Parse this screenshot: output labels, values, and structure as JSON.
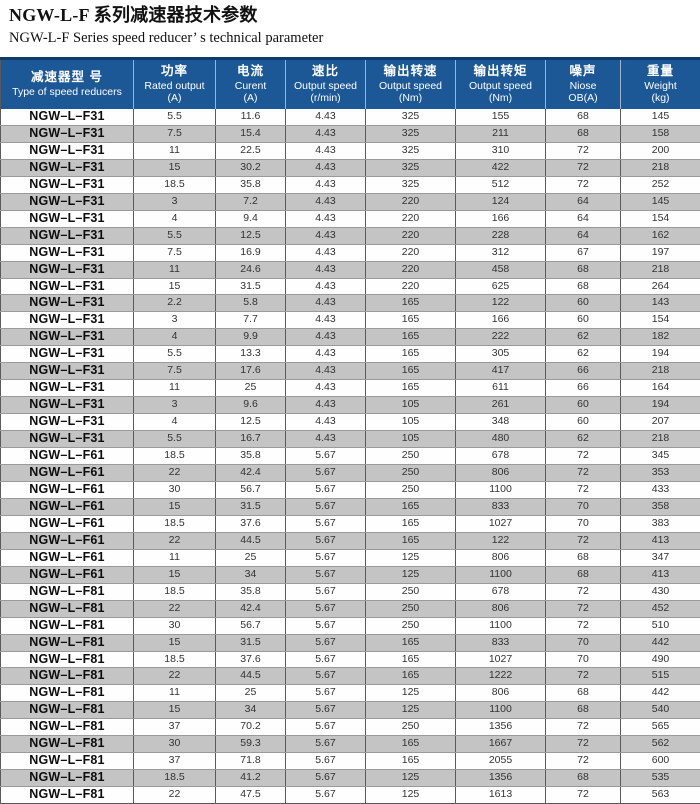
{
  "page": {
    "title_cn": "NGW-L-F 系列减速器技术参数",
    "title_en": "NGW-L-F Series speed reducer’ s technical parameter"
  },
  "colors": {
    "header_background": "#1C5796",
    "header_top_border": "#0F3A6B",
    "row_stripe_gray": "#C4C4C4"
  },
  "table": {
    "columns": [
      {
        "cn": "减速器型 号",
        "en": "Type of speed reducers",
        "unit": ""
      },
      {
        "cn": "功率",
        "en": "Rated output",
        "unit": "(A)"
      },
      {
        "cn": "电流",
        "en": "Curent",
        "unit": "(A)"
      },
      {
        "cn": "速比",
        "en": "Output speed",
        "unit": "(r/min)"
      },
      {
        "cn": "输出转速",
        "en": "Output speed",
        "unit": "(Nm)"
      },
      {
        "cn": "输出转矩",
        "en": "Output speed",
        "unit": "(Nm)"
      },
      {
        "cn": "噪声",
        "en": "Niose",
        "unit": "OB(A)"
      },
      {
        "cn": "重量",
        "en": "Weight",
        "unit": "(kg)"
      }
    ],
    "rows": [
      [
        "NGW–L–F31",
        "5.5",
        "11.6",
        "4.43",
        "325",
        "155",
        "68",
        "145"
      ],
      [
        "NGW–L–F31",
        "7.5",
        "15.4",
        "4.43",
        "325",
        "211",
        "68",
        "158"
      ],
      [
        "NGW–L–F31",
        "11",
        "22.5",
        "4.43",
        "325",
        "310",
        "72",
        "200"
      ],
      [
        "NGW–L–F31",
        "15",
        "30.2",
        "4.43",
        "325",
        "422",
        "72",
        "218"
      ],
      [
        "NGW–L–F31",
        "18.5",
        "35.8",
        "4.43",
        "325",
        "512",
        "72",
        "252"
      ],
      [
        "NGW–L–F31",
        "3",
        "7.2",
        "4.43",
        "220",
        "124",
        "64",
        "145"
      ],
      [
        "NGW–L–F31",
        "4",
        "9.4",
        "4.43",
        "220",
        "166",
        "64",
        "154"
      ],
      [
        "NGW–L–F31",
        "5.5",
        "12.5",
        "4.43",
        "220",
        "228",
        "64",
        "162"
      ],
      [
        "NGW–L–F31",
        "7.5",
        "16.9",
        "4.43",
        "220",
        "312",
        "67",
        "197"
      ],
      [
        "NGW–L–F31",
        "11",
        "24.6",
        "4.43",
        "220",
        "458",
        "68",
        "218"
      ],
      [
        "NGW–L–F31",
        "15",
        "31.5",
        "4.43",
        "220",
        "625",
        "68",
        "264"
      ],
      [
        "NGW–L–F31",
        "2.2",
        "5.8",
        "4.43",
        "165",
        "122",
        "60",
        "143"
      ],
      [
        "NGW–L–F31",
        "3",
        "7.7",
        "4.43",
        "165",
        "166",
        "60",
        "154"
      ],
      [
        "NGW–L–F31",
        "4",
        "9.9",
        "4.43",
        "165",
        "222",
        "62",
        "182"
      ],
      [
        "NGW–L–F31",
        "5.5",
        "13.3",
        "4.43",
        "165",
        "305",
        "62",
        "194"
      ],
      [
        "NGW–L–F31",
        "7.5",
        "17.6",
        "4.43",
        "165",
        "417",
        "66",
        "218"
      ],
      [
        "NGW–L–F31",
        "11",
        "25",
        "4.43",
        "165",
        "611",
        "66",
        "164"
      ],
      [
        "NGW–L–F31",
        "3",
        "9.6",
        "4.43",
        "105",
        "261",
        "60",
        "194"
      ],
      [
        "NGW–L–F31",
        "4",
        "12.5",
        "4.43",
        "105",
        "348",
        "60",
        "207"
      ],
      [
        "NGW–L–F31",
        "5.5",
        "16.7",
        "4.43",
        "105",
        "480",
        "62",
        "218"
      ],
      [
        "NGW–L–F61",
        "18.5",
        "35.8",
        "5.67",
        "250",
        "678",
        "72",
        "345"
      ],
      [
        "NGW–L–F61",
        "22",
        "42.4",
        "5.67",
        "250",
        "806",
        "72",
        "353"
      ],
      [
        "NGW–L–F61",
        "30",
        "56.7",
        "5.67",
        "250",
        "1100",
        "72",
        "433"
      ],
      [
        "NGW–L–F61",
        "15",
        "31.5",
        "5.67",
        "165",
        "833",
        "70",
        "358"
      ],
      [
        "NGW–L–F61",
        "18.5",
        "37.6",
        "5.67",
        "165",
        "1027",
        "70",
        "383"
      ],
      [
        "NGW–L–F61",
        "22",
        "44.5",
        "5.67",
        "165",
        "122",
        "72",
        "413"
      ],
      [
        "NGW–L–F61",
        "11",
        "25",
        "5.67",
        "125",
        "806",
        "68",
        "347"
      ],
      [
        "NGW–L–F61",
        "15",
        "34",
        "5.67",
        "125",
        "1100",
        "68",
        "413"
      ],
      [
        "NGW–L–F81",
        "18.5",
        "35.8",
        "5.67",
        "250",
        "678",
        "72",
        "430"
      ],
      [
        "NGW–L–F81",
        "22",
        "42.4",
        "5.67",
        "250",
        "806",
        "72",
        "452"
      ],
      [
        "NGW–L–F81",
        "30",
        "56.7",
        "5.67",
        "250",
        "1100",
        "72",
        "510"
      ],
      [
        "NGW–L–F81",
        "15",
        "31.5",
        "5.67",
        "165",
        "833",
        "70",
        "442"
      ],
      [
        "NGW–L–F81",
        "18.5",
        "37.6",
        "5.67",
        "165",
        "1027",
        "70",
        "490"
      ],
      [
        "NGW–L–F81",
        "22",
        "44.5",
        "5.67",
        "165",
        "1222",
        "72",
        "515"
      ],
      [
        "NGW–L–F81",
        "11",
        "25",
        "5.67",
        "125",
        "806",
        "68",
        "442"
      ],
      [
        "NGW–L–F81",
        "15",
        "34",
        "5.67",
        "125",
        "1100",
        "68",
        "540"
      ],
      [
        "NGW–L–F81",
        "37",
        "70.2",
        "5.67",
        "250",
        "1356",
        "72",
        "565"
      ],
      [
        "NGW–L–F81",
        "30",
        "59.3",
        "5.67",
        "165",
        "1667",
        "72",
        "562"
      ],
      [
        "NGW–L–F81",
        "37",
        "71.8",
        "5.67",
        "165",
        "2055",
        "72",
        "600"
      ],
      [
        "NGW–L–F81",
        "18.5",
        "41.2",
        "5.67",
        "125",
        "1356",
        "68",
        "535"
      ],
      [
        "NGW–L–F81",
        "22",
        "47.5",
        "5.67",
        "125",
        "1613",
        "72",
        "563"
      ]
    ]
  }
}
